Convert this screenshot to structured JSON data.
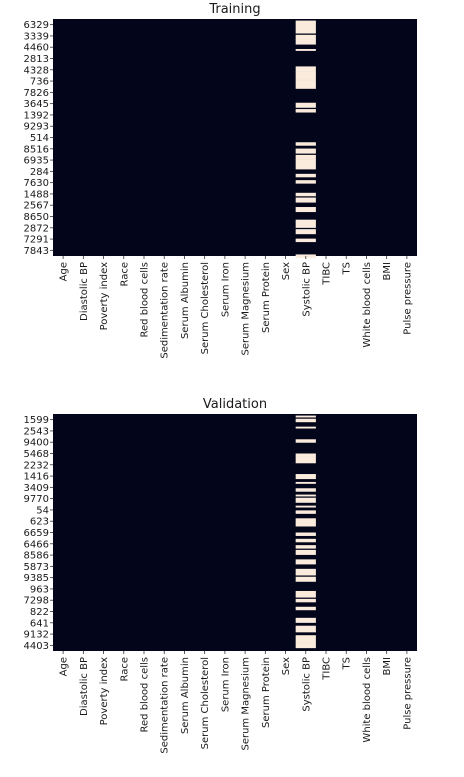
{
  "chart_data": [
    {
      "type": "heatmap",
      "title": "Training",
      "columns": [
        "Age",
        "Diastolic BP",
        "Poverty index",
        "Race",
        "Red blood cells",
        "Sedimentation rate",
        "Serum Albumin",
        "Serum Cholesterol",
        "Serum Iron",
        "Serum Magnesium",
        "Serum Protein",
        "Sex",
        "Systolic BP",
        "TIBC",
        "TS",
        "White blood cells",
        "BMI",
        "Pulse pressure"
      ],
      "row_labels": [
        "6329",
        "3339",
        "4460",
        "2813",
        "4328",
        "736",
        "7826",
        "3645",
        "1392",
        "9293",
        "514",
        "8516",
        "6935",
        "284",
        "7630",
        "1488",
        "2567",
        "8650",
        "2872",
        "7291",
        "7843"
      ],
      "value_meaning": "missing indicator (0 = present, 1 = missing)",
      "missing_column": "Systolic BP",
      "missing_fraction_estimate": 0.45,
      "colorbar": false,
      "colors": {
        "present": "#03051a",
        "missing": "#faebdd"
      }
    },
    {
      "type": "heatmap",
      "title": "Validation",
      "columns": [
        "Age",
        "Diastolic BP",
        "Poverty index",
        "Race",
        "Red blood cells",
        "Sedimentation rate",
        "Serum Albumin",
        "Serum Cholesterol",
        "Serum Iron",
        "Serum Magnesium",
        "Serum Protein",
        "Sex",
        "Systolic BP",
        "TIBC",
        "TS",
        "White blood cells",
        "BMI",
        "Pulse pressure"
      ],
      "row_labels": [
        "1599",
        "2543",
        "9400",
        "5468",
        "2232",
        "1416",
        "3409",
        "9770",
        "54",
        "623",
        "6659",
        "6466",
        "8586",
        "5873",
        "9385",
        "963",
        "7298",
        "822",
        "641",
        "9132",
        "4403"
      ],
      "value_meaning": "missing indicator (0 = present, 1 = missing)",
      "missing_column": "Systolic BP",
      "missing_fraction_estimate": 0.45,
      "colorbar": false,
      "colors": {
        "present": "#03051a",
        "missing": "#faebdd"
      }
    }
  ]
}
